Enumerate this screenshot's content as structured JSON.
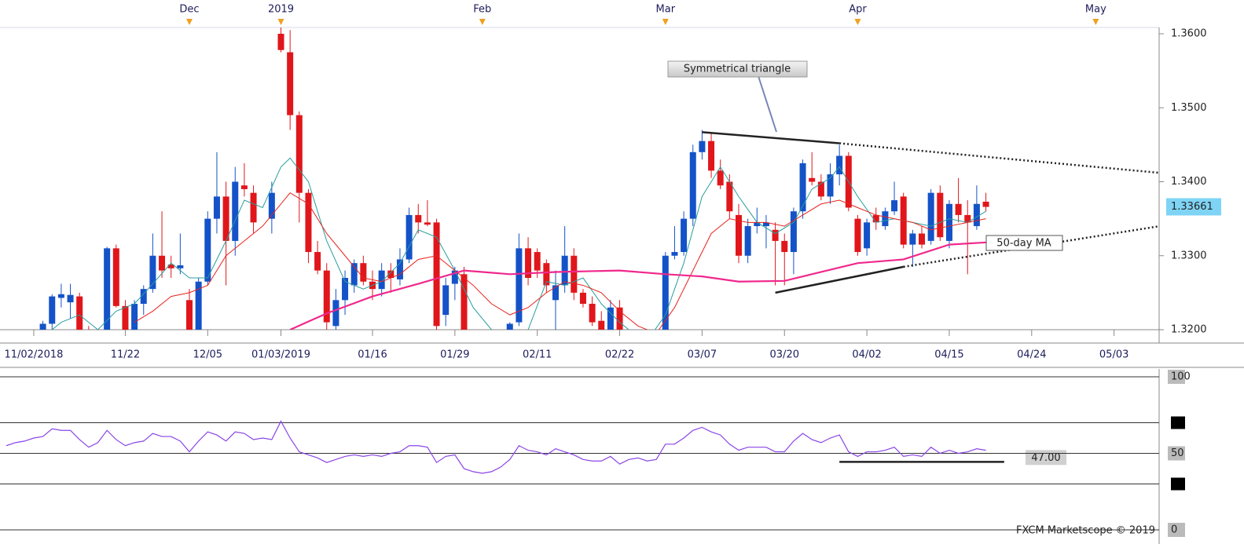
{
  "chart_data": {
    "type": "candlestick",
    "xlim": [
      0,
      126
    ],
    "ylim": [
      1.32,
      1.36085
    ],
    "yticks": [
      {
        "value": 1.32,
        "label": "1.3200"
      },
      {
        "value": 1.33,
        "label": "1.3300"
      },
      {
        "value": 1.34,
        "label": "1.3400"
      },
      {
        "value": 1.35,
        "label": "1.3500"
      },
      {
        "value": 1.36,
        "label": "1.3600"
      }
    ],
    "xticks": [
      {
        "value": 3,
        "label": "11/02/2018"
      },
      {
        "value": 13,
        "label": "11/22"
      },
      {
        "value": 22,
        "label": "12/05"
      },
      {
        "value": 30,
        "label": "01/03/2019"
      },
      {
        "value": 40,
        "label": "01/16"
      },
      {
        "value": 49,
        "label": "01/29"
      },
      {
        "value": 58,
        "label": "02/11"
      },
      {
        "value": 67,
        "label": "02/22"
      },
      {
        "value": 76,
        "label": "03/07"
      },
      {
        "value": 85,
        "label": "03/20"
      },
      {
        "value": 94,
        "label": "04/02"
      },
      {
        "value": 103,
        "label": "04/15"
      },
      {
        "value": 112,
        "label": "04/24"
      },
      {
        "value": 121,
        "label": "05/03"
      }
    ],
    "months": [
      {
        "value": 20,
        "label": "Dec"
      },
      {
        "value": 30,
        "label": "2019"
      },
      {
        "value": 52,
        "label": "Feb"
      },
      {
        "value": 72,
        "label": "Mar"
      },
      {
        "value": 93,
        "label": "Apr"
      },
      {
        "value": 119,
        "label": "May"
      }
    ],
    "up_color": "#1452c8",
    "down_color": "#e0161b",
    "candles": [
      [
        4,
        1.3185,
        1.3212,
        1.318,
        1.3208
      ],
      [
        5,
        1.3208,
        1.3248,
        1.32,
        1.3245
      ],
      [
        6,
        1.3243,
        1.3262,
        1.323,
        1.3248
      ],
      [
        7,
        1.3237,
        1.3262,
        1.3215,
        1.3247
      ],
      [
        8,
        1.3245,
        1.325,
        1.319,
        1.3195
      ],
      [
        9,
        1.3195,
        1.3205,
        1.318,
        1.3185
      ],
      [
        11,
        1.319,
        1.3312,
        1.3185,
        1.331
      ],
      [
        12,
        1.331,
        1.3315,
        1.323,
        1.3232
      ],
      [
        13,
        1.3232,
        1.324,
        1.318,
        1.32
      ],
      [
        14,
        1.3195,
        1.324,
        1.3185,
        1.3235
      ],
      [
        15,
        1.3235,
        1.326,
        1.322,
        1.3255
      ],
      [
        16,
        1.3255,
        1.333,
        1.325,
        1.33
      ],
      [
        17,
        1.33,
        1.336,
        1.327,
        1.328
      ],
      [
        18,
        1.3288,
        1.33,
        1.327,
        1.3283
      ],
      [
        19,
        1.3283,
        1.333,
        1.3275,
        1.3287
      ],
      [
        20,
        1.324,
        1.3255,
        1.318,
        1.319
      ],
      [
        21,
        1.319,
        1.327,
        1.3185,
        1.3265
      ],
      [
        22,
        1.3265,
        1.336,
        1.326,
        1.335
      ],
      [
        23,
        1.335,
        1.344,
        1.333,
        1.338
      ],
      [
        24,
        1.338,
        1.34,
        1.326,
        1.332
      ],
      [
        25,
        1.332,
        1.342,
        1.33,
        1.34
      ],
      [
        26,
        1.3395,
        1.3425,
        1.338,
        1.339
      ],
      [
        27,
        1.3385,
        1.3395,
        1.333,
        1.3345
      ],
      [
        29,
        1.335,
        1.34,
        1.333,
        1.3385
      ],
      [
        30,
        1.36,
        1.361,
        1.3575,
        1.3578
      ],
      [
        31,
        1.3575,
        1.3605,
        1.347,
        1.349
      ],
      [
        32,
        1.349,
        1.3495,
        1.3345,
        1.3385
      ],
      [
        33,
        1.3385,
        1.339,
        1.329,
        1.3305
      ],
      [
        34,
        1.3305,
        1.332,
        1.3275,
        1.328
      ],
      [
        35,
        1.328,
        1.329,
        1.32,
        1.321
      ],
      [
        36,
        1.3205,
        1.3255,
        1.3195,
        1.324
      ],
      [
        37,
        1.324,
        1.328,
        1.322,
        1.327
      ],
      [
        38,
        1.326,
        1.3295,
        1.325,
        1.329
      ],
      [
        39,
        1.329,
        1.33,
        1.326,
        1.3265
      ],
      [
        40,
        1.3265,
        1.328,
        1.324,
        1.3255
      ],
      [
        41,
        1.3255,
        1.329,
        1.3245,
        1.328
      ],
      [
        42,
        1.328,
        1.329,
        1.325,
        1.327
      ],
      [
        43,
        1.3268,
        1.331,
        1.326,
        1.3295
      ],
      [
        44,
        1.3295,
        1.3365,
        1.329,
        1.3355
      ],
      [
        45,
        1.3355,
        1.337,
        1.333,
        1.3345
      ],
      [
        46,
        1.3345,
        1.3375,
        1.334,
        1.3342
      ],
      [
        47,
        1.3345,
        1.335,
        1.32,
        1.3205
      ],
      [
        48,
        1.322,
        1.327,
        1.3205,
        1.326
      ],
      [
        49,
        1.3262,
        1.3285,
        1.324,
        1.328
      ],
      [
        50,
        1.3275,
        1.3285,
        1.318,
        1.319
      ],
      [
        55,
        1.3195,
        1.321,
        1.319,
        1.3208
      ],
      [
        56,
        1.321,
        1.333,
        1.3205,
        1.331
      ],
      [
        57,
        1.331,
        1.3325,
        1.326,
        1.327
      ],
      [
        58,
        1.3305,
        1.331,
        1.327,
        1.328
      ],
      [
        59,
        1.329,
        1.3295,
        1.325,
        1.326
      ],
      [
        60,
        1.324,
        1.328,
        1.32,
        1.326
      ],
      [
        61,
        1.326,
        1.334,
        1.325,
        1.33
      ],
      [
        62,
        1.33,
        1.331,
        1.324,
        1.325
      ],
      [
        63,
        1.325,
        1.3255,
        1.323,
        1.3235
      ],
      [
        64,
        1.3235,
        1.3245,
        1.3205,
        1.321
      ],
      [
        65,
        1.3212,
        1.3225,
        1.3195,
        1.32
      ],
      [
        66,
        1.3195,
        1.324,
        1.319,
        1.323
      ],
      [
        67,
        1.323,
        1.324,
        1.319,
        1.3195
      ],
      [
        72,
        1.3195,
        1.3305,
        1.319,
        1.33
      ],
      [
        73,
        1.33,
        1.334,
        1.3295,
        1.3305
      ],
      [
        74,
        1.3305,
        1.336,
        1.33,
        1.335
      ],
      [
        75,
        1.335,
        1.345,
        1.334,
        1.344
      ],
      [
        76,
        1.344,
        1.347,
        1.343,
        1.3455
      ],
      [
        77,
        1.3455,
        1.3465,
        1.3405,
        1.3415
      ],
      [
        78,
        1.3415,
        1.343,
        1.339,
        1.3395
      ],
      [
        79,
        1.34,
        1.341,
        1.335,
        1.336
      ],
      [
        80,
        1.3355,
        1.337,
        1.329,
        1.33
      ],
      [
        81,
        1.33,
        1.335,
        1.329,
        1.334
      ],
      [
        82,
        1.334,
        1.3365,
        1.333,
        1.3345
      ],
      [
        83,
        1.334,
        1.3355,
        1.331,
        1.3345
      ],
      [
        84,
        1.3335,
        1.3345,
        1.326,
        1.332
      ],
      [
        85,
        1.332,
        1.333,
        1.326,
        1.3305
      ],
      [
        86,
        1.3305,
        1.3365,
        1.3275,
        1.336
      ],
      [
        87,
        1.336,
        1.343,
        1.335,
        1.3425
      ],
      [
        88,
        1.3405,
        1.344,
        1.3395,
        1.34
      ],
      [
        89,
        1.34,
        1.341,
        1.3375,
        1.338
      ],
      [
        90,
        1.338,
        1.3425,
        1.337,
        1.341
      ],
      [
        91,
        1.341,
        1.345,
        1.3395,
        1.3435
      ],
      [
        92,
        1.3435,
        1.344,
        1.336,
        1.3365
      ],
      [
        93,
        1.335,
        1.3355,
        1.33,
        1.3305
      ],
      [
        94,
        1.331,
        1.335,
        1.33,
        1.3345
      ],
      [
        95,
        1.3355,
        1.3365,
        1.3335,
        1.3345
      ],
      [
        96,
        1.334,
        1.3365,
        1.3335,
        1.336
      ],
      [
        97,
        1.336,
        1.34,
        1.3355,
        1.3375
      ],
      [
        98,
        1.338,
        1.3385,
        1.331,
        1.3315
      ],
      [
        99,
        1.3315,
        1.3335,
        1.3285,
        1.333
      ],
      [
        100,
        1.333,
        1.334,
        1.331,
        1.3315
      ],
      [
        101,
        1.332,
        1.339,
        1.3315,
        1.3385
      ],
      [
        102,
        1.3385,
        1.3395,
        1.332,
        1.3325
      ],
      [
        103,
        1.332,
        1.3375,
        1.331,
        1.337
      ],
      [
        104,
        1.337,
        1.3405,
        1.3345,
        1.3355
      ],
      [
        105,
        1.3355,
        1.3375,
        1.3275,
        1.3345
      ],
      [
        106,
        1.334,
        1.3395,
        1.3335,
        1.337
      ],
      [
        107,
        1.3373,
        1.3385,
        1.336,
        1.3366
      ]
    ],
    "series": [
      {
        "color": "#2a9d9d",
        "width": 1,
        "x": [
          4,
          6,
          8,
          10,
          12,
          14,
          16,
          18,
          20,
          22,
          24,
          26,
          28,
          30,
          31,
          33,
          35,
          37,
          39,
          41,
          43,
          45,
          47,
          49,
          51,
          53,
          55,
          57,
          59,
          61,
          63,
          65,
          67,
          69,
          70,
          72,
          74,
          76,
          78,
          80,
          82,
          84,
          86,
          88,
          90,
          91,
          93,
          95,
          97,
          99,
          101,
          103,
          105,
          107
        ],
        "values": [
          1.319,
          1.321,
          1.322,
          1.32,
          1.3225,
          1.3235,
          1.3262,
          1.329,
          1.327,
          1.327,
          1.332,
          1.3375,
          1.3365,
          1.342,
          1.3432,
          1.34,
          1.332,
          1.3265,
          1.3255,
          1.3265,
          1.329,
          1.3335,
          1.3325,
          1.328,
          1.323,
          1.32,
          1.3185,
          1.32,
          1.3265,
          1.326,
          1.327,
          1.3235,
          1.321,
          1.319,
          1.3185,
          1.322,
          1.329,
          1.338,
          1.342,
          1.338,
          1.3345,
          1.333,
          1.3345,
          1.339,
          1.3405,
          1.342,
          1.338,
          1.3345,
          1.335,
          1.3345,
          1.334,
          1.335,
          1.3345,
          1.336
        ]
      },
      {
        "color": "#e8231e",
        "width": 1,
        "x": [
          14,
          16,
          18,
          20,
          22,
          24,
          26,
          28,
          30,
          31,
          33,
          35,
          37,
          39,
          41,
          43,
          45,
          47,
          49,
          51,
          53,
          55,
          57,
          59,
          61,
          63,
          65,
          67,
          69,
          71,
          73,
          75,
          77,
          79,
          81,
          83,
          85,
          87,
          89,
          91,
          93,
          95,
          97,
          99,
          101,
          103,
          105,
          107
        ],
        "values": [
          1.321,
          1.3225,
          1.3245,
          1.325,
          1.326,
          1.33,
          1.332,
          1.334,
          1.337,
          1.3385,
          1.337,
          1.333,
          1.33,
          1.327,
          1.3265,
          1.3275,
          1.3295,
          1.33,
          1.328,
          1.326,
          1.3235,
          1.322,
          1.323,
          1.325,
          1.3265,
          1.326,
          1.325,
          1.3225,
          1.3205,
          1.3195,
          1.323,
          1.328,
          1.333,
          1.335,
          1.3345,
          1.3345,
          1.334,
          1.3355,
          1.337,
          1.3375,
          1.3365,
          1.3355,
          1.335,
          1.3345,
          1.3335,
          1.334,
          1.3345,
          1.335
        ]
      },
      {
        "name": "50-day MA",
        "color": "#f0288c",
        "width": 2.2,
        "x": [
          31,
          35,
          40,
          45,
          50,
          55,
          60,
          67,
          72,
          76,
          80,
          85,
          89,
          93,
          98,
          103,
          107
        ],
        "values": [
          1.32,
          1.3222,
          1.3245,
          1.3262,
          1.328,
          1.3275,
          1.3278,
          1.328,
          1.3275,
          1.3272,
          1.3265,
          1.3266,
          1.3278,
          1.329,
          1.3295,
          1.3315,
          1.3318
        ]
      }
    ],
    "trendlines": [
      {
        "x": [
          76,
          91
        ],
        "values": [
          1.3467,
          1.3452
        ],
        "style": "solid"
      },
      {
        "x": [
          91,
          126
        ],
        "values": [
          1.3452,
          1.3412
        ],
        "style": "dotted"
      },
      {
        "x": [
          84,
          98
        ],
        "values": [
          1.325,
          1.3285
        ],
        "style": "solid"
      },
      {
        "x": [
          98,
          126
        ],
        "values": [
          1.3285,
          1.334
        ],
        "style": "dotted"
      }
    ],
    "annotation": "Symmetrical triangle",
    "last_price": 1.33661,
    "rsi": {
      "color": "#8a45e6",
      "ylim": [
        0,
        100
      ],
      "yticks": [
        0,
        50,
        100
      ],
      "levels": [
        30,
        70
      ],
      "x": [
        0,
        1,
        2,
        3,
        4,
        5,
        6,
        7,
        8,
        9,
        10,
        11,
        12,
        13,
        14,
        15,
        16,
        17,
        18,
        19,
        20,
        21,
        22,
        23,
        24,
        25,
        26,
        27,
        28,
        29,
        30,
        31,
        32,
        33,
        34,
        35,
        36,
        37,
        38,
        39,
        40,
        41,
        42,
        43,
        44,
        45,
        46,
        47,
        48,
        49,
        50,
        51,
        52,
        53,
        54,
        55,
        56,
        57,
        58,
        59,
        60,
        61,
        62,
        63,
        64,
        65,
        66,
        67,
        68,
        69,
        70,
        71,
        72,
        73,
        74,
        75,
        76,
        77,
        78,
        79,
        80,
        81,
        82,
        83,
        84,
        85,
        86,
        87,
        88,
        89,
        90,
        91,
        92,
        93,
        94,
        95,
        96,
        97,
        98,
        99,
        100,
        101,
        102,
        103,
        104,
        105,
        106,
        107
      ],
      "values": [
        55,
        57,
        58,
        60,
        61,
        66,
        65,
        65,
        59,
        54,
        57,
        65,
        59,
        55,
        57,
        58,
        63,
        61,
        61,
        58,
        51,
        58,
        64,
        62,
        58,
        64,
        63,
        59,
        60,
        59,
        71,
        60,
        51,
        49,
        47,
        44,
        46,
        48,
        49,
        48,
        49,
        48,
        50,
        51,
        55,
        55,
        54,
        44,
        48,
        49,
        40,
        38,
        37,
        38,
        41,
        46,
        55,
        52,
        51,
        49,
        53,
        51,
        49,
        46,
        45,
        45,
        48,
        43,
        46,
        47,
        45,
        46,
        56,
        56,
        60,
        65,
        67,
        64,
        62,
        56,
        52,
        54,
        54,
        54,
        51,
        51,
        58,
        63,
        59,
        57,
        60,
        62,
        51,
        48,
        51,
        51,
        52,
        54,
        48,
        49,
        48,
        54,
        50,
        52,
        50,
        51,
        53,
        52
      ],
      "marker": {
        "x": [
          91,
          109
        ],
        "value": 47,
        "value_label": "47.00"
      }
    },
    "watermark": "FXCM Marketscope © 2019"
  }
}
